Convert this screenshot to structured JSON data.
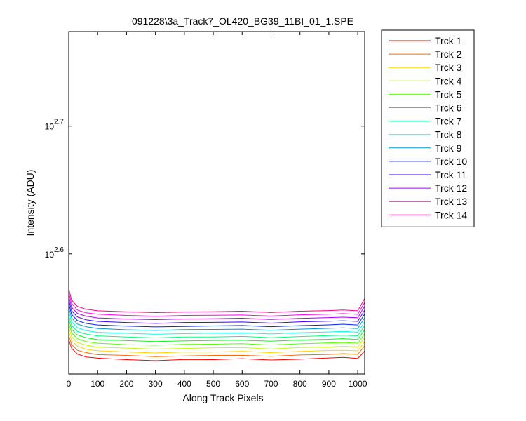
{
  "chart_data": {
    "type": "line",
    "title": "091228\\3a_Track7_OL420_BG39_11BI_01_1.SPE",
    "xlabel": "Along Track Pixels",
    "ylabel": "Intensity (ADU)",
    "ylog": true,
    "xlim": [
      0,
      1024
    ],
    "ylim": [
      320.6,
      594.3
    ],
    "xticks": [
      0,
      100,
      200,
      300,
      400,
      500,
      600,
      700,
      800,
      900,
      1000
    ],
    "yticks": [
      {
        "value": 398.1071705534972,
        "label": "10",
        "exponent": "2.6"
      },
      {
        "value": 501.18723362727224,
        "label": "10",
        "exponent": "2.7"
      }
    ],
    "legend": "outside-right",
    "x": [
      1,
      10,
      30,
      60,
      100,
      200,
      300,
      400,
      500,
      600,
      700,
      800,
      900,
      950,
      1000,
      1023
    ],
    "series": [
      {
        "name": "Trck 1",
        "color": "#ff0000",
        "values": [
          340.5,
          335.8,
          332.3,
          330.6,
          329.9,
          329.0,
          328.4,
          329.1,
          329.0,
          329.6,
          328.8,
          329.3,
          330.0,
          330.4,
          329.7,
          334.0
        ]
      },
      {
        "name": "Trck 2",
        "color": "#ff6a00",
        "values": [
          343.0,
          338.1,
          334.6,
          333.2,
          332.0,
          331.5,
          330.8,
          331.2,
          331.5,
          331.6,
          331.0,
          331.8,
          332.1,
          332.6,
          332.2,
          337.0
        ]
      },
      {
        "name": "Trck 3",
        "color": "#ffd500",
        "values": [
          345.5,
          340.6,
          337.1,
          335.2,
          334.3,
          333.6,
          333.0,
          333.6,
          333.5,
          334.0,
          333.2,
          333.9,
          334.5,
          334.6,
          334.3,
          339.5
        ]
      },
      {
        "name": "Trck 4",
        "color": "#bfff00",
        "values": [
          348.0,
          343.0,
          339.4,
          337.7,
          336.5,
          335.9,
          335.3,
          335.7,
          336.1,
          336.2,
          335.4,
          336.3,
          336.6,
          337.0,
          336.7,
          342.0
        ]
      },
      {
        "name": "Trck 5",
        "color": "#55ff00",
        "values": [
          350.5,
          345.3,
          341.7,
          339.9,
          338.9,
          338.0,
          337.7,
          338.2,
          338.3,
          338.6,
          337.8,
          338.5,
          339.1,
          339.3,
          338.9,
          344.5
        ]
      },
      {
        "name": "Trck 6",
        "color": "#00ff15",
        "values": [
          353.0,
          347.6,
          344.0,
          342.3,
          341.1,
          340.5,
          339.9,
          340.3,
          340.6,
          340.7,
          340.1,
          340.9,
          341.3,
          341.7,
          341.2,
          347.0
        ]
      },
      {
        "name": "Trck 7",
        "color": "#00ff80",
        "values": [
          355.5,
          350.0,
          346.2,
          344.5,
          343.4,
          342.7,
          342.2,
          342.7,
          342.7,
          343.1,
          342.3,
          343.0,
          343.6,
          343.8,
          343.5,
          349.5
        ]
      },
      {
        "name": "Trck 8",
        "color": "#00ffea",
        "values": [
          358.0,
          352.3,
          348.5,
          346.7,
          345.6,
          345.0,
          344.4,
          344.8,
          345.1,
          345.3,
          344.6,
          345.4,
          345.8,
          346.2,
          345.7,
          352.0
        ]
      },
      {
        "name": "Trck 9",
        "color": "#0095d5",
        "values": [
          360.5,
          354.7,
          350.8,
          349.1,
          348.0,
          347.2,
          346.8,
          347.3,
          347.4,
          347.6,
          346.9,
          347.6,
          348.1,
          348.4,
          348.0,
          354.5
        ]
      },
      {
        "name": "Trck 10",
        "color": "#0020ff",
        "values": [
          363.0,
          357.0,
          353.0,
          351.2,
          350.2,
          349.5,
          349.0,
          349.3,
          349.6,
          349.9,
          349.1,
          349.8,
          350.3,
          350.7,
          350.2,
          357.0
        ]
      },
      {
        "name": "Trck 11",
        "color": "#4000ff",
        "values": [
          365.5,
          359.3,
          355.3,
          353.5,
          352.5,
          351.8,
          351.2,
          351.8,
          351.9,
          352.1,
          351.4,
          352.2,
          352.6,
          352.9,
          352.5,
          359.5
        ]
      },
      {
        "name": "Trck 12",
        "color": "#aa00ff",
        "values": [
          368.0,
          361.6,
          357.6,
          355.8,
          354.7,
          354.0,
          353.6,
          354.0,
          354.2,
          354.5,
          353.7,
          354.4,
          354.9,
          355.2,
          354.8,
          362.0
        ]
      },
      {
        "name": "Trck 13",
        "color": "#ff00ea",
        "values": [
          370.5,
          364.0,
          359.8,
          358.0,
          357.1,
          356.3,
          355.8,
          356.3,
          356.4,
          356.6,
          355.9,
          356.7,
          357.1,
          357.5,
          357.0,
          364.5
        ]
      },
      {
        "name": "Trck 14",
        "color": "#ff0080",
        "values": [
          373.0,
          366.3,
          362.1,
          360.3,
          359.3,
          358.6,
          358.1,
          358.5,
          358.7,
          359.0,
          358.2,
          359.0,
          359.4,
          359.8,
          359.3,
          367.0
        ]
      }
    ]
  }
}
